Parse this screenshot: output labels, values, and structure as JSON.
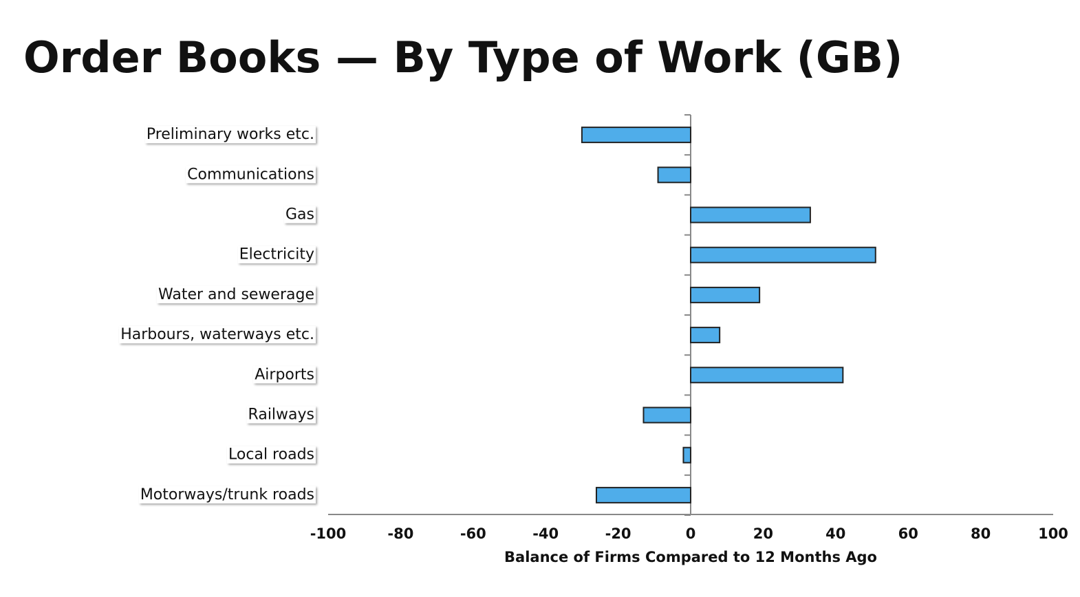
{
  "chart_data": {
    "type": "barh",
    "title": "Order Books — By Type of Work (GB)",
    "categories": [
      "Preliminary works etc.",
      "Communications",
      "Gas",
      "Electricity",
      "Water and sewerage",
      "Harbours, waterways etc.",
      "Airports",
      "Railways",
      "Local roads",
      "Motorways/trunk roads"
    ],
    "values": [
      -30,
      -9,
      33,
      51,
      19,
      8,
      42,
      -13,
      -2,
      -26
    ],
    "color": "#4fadea",
    "xlim": [
      -100,
      100
    ],
    "xticks": [
      -100,
      -80,
      -60,
      -40,
      -20,
      0,
      20,
      40,
      60,
      80,
      100
    ],
    "xlabel": "Balance of Firms Compared to 12 Months Ago"
  }
}
